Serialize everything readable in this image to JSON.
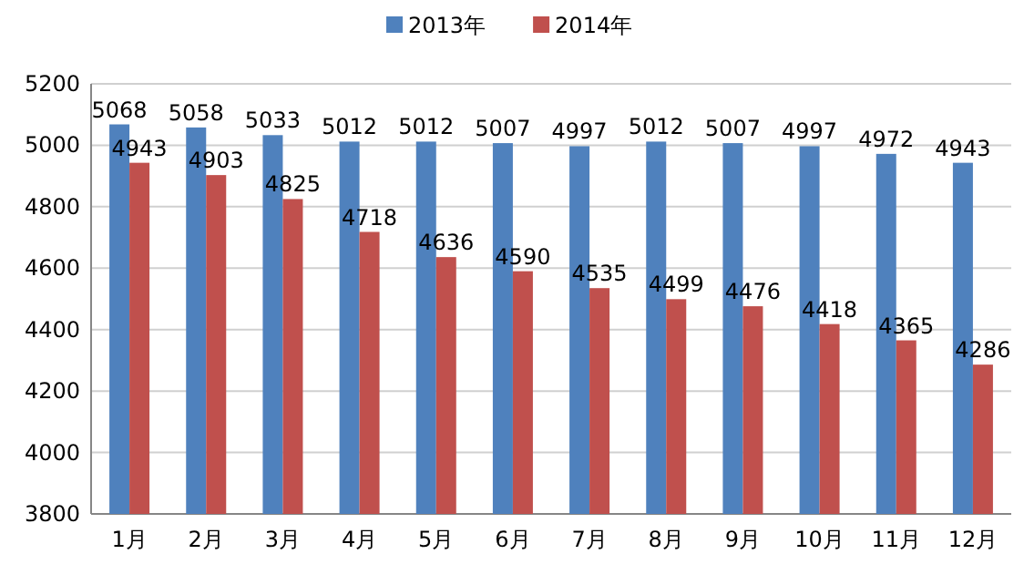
{
  "chart_data": {
    "type": "bar",
    "categories": [
      "1月",
      "2月",
      "3月",
      "4月",
      "5月",
      "6月",
      "7月",
      "8月",
      "9月",
      "10月",
      "11月",
      "12月"
    ],
    "series": [
      {
        "name": "2013年",
        "color": "#4f81bd",
        "values": [
          5068,
          5058,
          5033,
          5012,
          5012,
          5007,
          4997,
          5012,
          5007,
          4997,
          4972,
          4943
        ]
      },
      {
        "name": "2014年",
        "color": "#c0504d",
        "values": [
          4943,
          4903,
          4825,
          4718,
          4636,
          4590,
          4535,
          4499,
          4476,
          4418,
          4365,
          4286
        ]
      }
    ],
    "ylim": [
      3800,
      5200
    ],
    "yticks": [
      3800,
      4000,
      4200,
      4400,
      4600,
      4800,
      5000,
      5200
    ],
    "grid": "y",
    "legend": "top",
    "data_labels": true
  }
}
